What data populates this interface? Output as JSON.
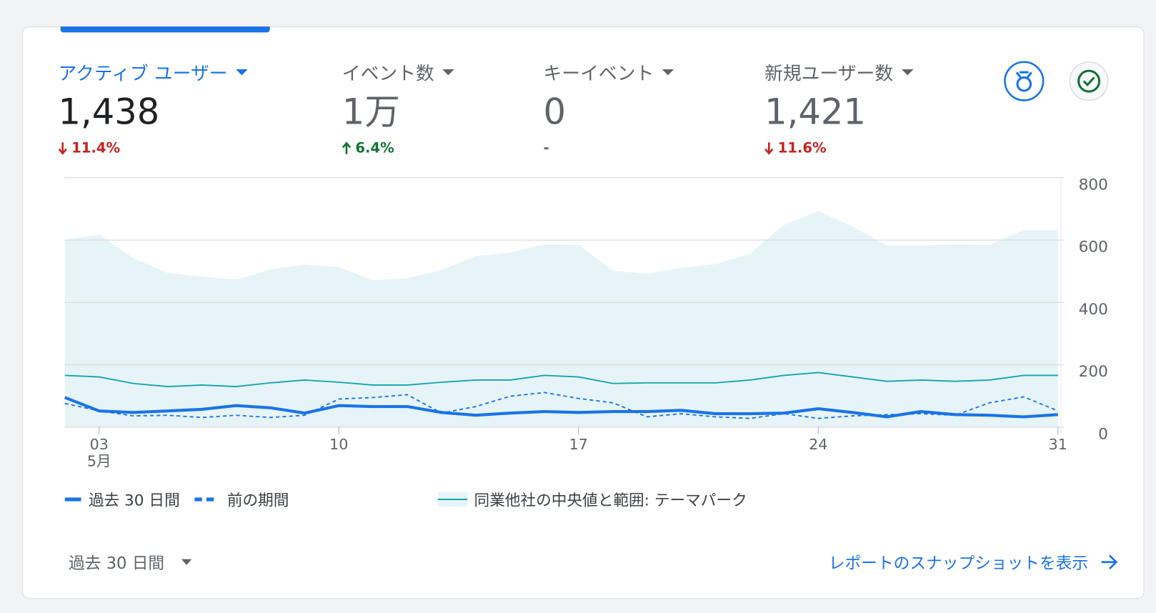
{
  "metrics": [
    {
      "label": "アクティブ ユーザー",
      "value": "1,438",
      "change": "11.4%",
      "trend": "down",
      "active": true
    },
    {
      "label": "イベント数",
      "value": "1万",
      "change": "6.4%",
      "trend": "up",
      "active": false
    },
    {
      "label": "キーイベント",
      "value": "0",
      "change": "-",
      "trend": "none",
      "active": false
    },
    {
      "label": "新規ユーザー数",
      "value": "1,421",
      "change": "11.6%",
      "trend": "down",
      "active": false
    }
  ],
  "chart_data": {
    "type": "line",
    "x": [
      2,
      3,
      4,
      5,
      6,
      7,
      8,
      9,
      10,
      11,
      12,
      13,
      14,
      15,
      16,
      17,
      18,
      19,
      20,
      21,
      22,
      23,
      24,
      25,
      26,
      27,
      28,
      29,
      30,
      31
    ],
    "xlim": [
      2,
      31
    ],
    "xticks": [
      {
        "value": 3,
        "label": "03"
      },
      10,
      17,
      24,
      31
    ],
    "x_month_label": "5月",
    "ylim": [
      0,
      800
    ],
    "yticks": [
      0,
      200,
      400,
      600,
      800
    ],
    "grid": true,
    "series": [
      {
        "name": "過去 30 日間",
        "color": "#1a73e8",
        "style": "solid",
        "values": [
          95,
          52,
          47,
          52,
          57,
          69,
          62,
          45,
          69,
          66,
          66,
          47,
          38,
          45,
          50,
          47,
          50,
          50,
          54,
          43,
          43,
          45,
          59,
          47,
          33,
          50,
          40,
          38,
          33,
          40
        ]
      },
      {
        "name": "前の期間",
        "color": "#1a73e8",
        "style": "dashed",
        "values": [
          76,
          52,
          36,
          38,
          31,
          38,
          31,
          38,
          90,
          95,
          104,
          45,
          66,
          99,
          111,
          92,
          78,
          33,
          43,
          33,
          28,
          43,
          28,
          36,
          40,
          43,
          38,
          78,
          97,
          52
        ]
      },
      {
        "name": "同業他社の中央値と範囲: テーマパーク",
        "color": "#12a4af",
        "style": "solid",
        "range_color": "#e6f4f8",
        "values": [
          166,
          161,
          140,
          130,
          135,
          130,
          142,
          151,
          144,
          135,
          135,
          144,
          151,
          151,
          166,
          161,
          140,
          142,
          142,
          142,
          151,
          166,
          175,
          161,
          147,
          151,
          147,
          151,
          166,
          166
        ],
        "range_high": [
          601,
          618,
          542,
          495,
          483,
          473,
          506,
          521,
          514,
          471,
          478,
          504,
          549,
          559,
          587,
          585,
          502,
          492,
          511,
          523,
          556,
          649,
          693,
          644,
          582,
          582,
          587,
          585,
          632,
          632
        ]
      }
    ]
  },
  "footer": {
    "period": "過去 30 日間",
    "link": "レポートのスナップショットを表示"
  }
}
